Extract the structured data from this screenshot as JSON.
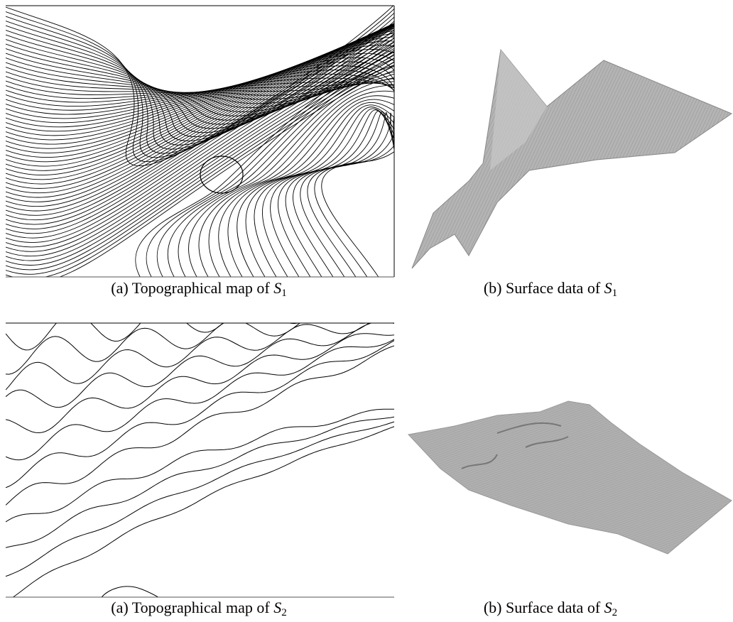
{
  "figures": [
    {
      "panels": [
        {
          "label": "(a)",
          "text": "Topographical map of",
          "symbol": "S",
          "subscript": "1"
        },
        {
          "label": "(b)",
          "text": "Surface data of",
          "symbol": "S",
          "subscript": "1"
        }
      ]
    },
    {
      "panels": [
        {
          "label": "(a)",
          "text": "Topographical map of",
          "symbol": "S",
          "subscript": "2"
        },
        {
          "label": "(b)",
          "text": "Surface data of",
          "symbol": "S",
          "subscript": "2"
        }
      ]
    }
  ]
}
